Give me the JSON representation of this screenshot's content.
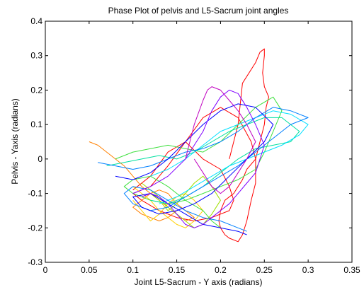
{
  "chart_data": {
    "type": "line",
    "title": "Phase Plot of pelvis and L5-Sacrum joint angles",
    "xlabel": "Joint L5-Sacrum - Y axis (radians)",
    "ylabel": "Pelvis - Yaxis (radians)",
    "xlim": [
      0,
      0.35
    ],
    "ylim": [
      -0.3,
      0.4
    ],
    "xticks": [
      "0",
      "0.05",
      "0.1",
      "0.15",
      "0.2",
      "0.25",
      "0.3",
      "0.35"
    ],
    "yticks": [
      "-0.3",
      "-0.2",
      "-0.1",
      "0",
      "0.1",
      "0.2",
      "0.3",
      "0.4"
    ],
    "grid": false,
    "series": [
      {
        "color": "#ff0000",
        "x": [
          0.21,
          0.22,
          0.225,
          0.24,
          0.245,
          0.25,
          0.25,
          0.248,
          0.25,
          0.255,
          0.252,
          0.25,
          0.245,
          0.24,
          0.23,
          0.225,
          0.22,
          0.215,
          0.205,
          0.2,
          0.198,
          0.2,
          0.205,
          0.21,
          0.22,
          0.225,
          0.23,
          0.235,
          0.24,
          0.24,
          0.235,
          0.22,
          0.2,
          0.18,
          0.16,
          0.14,
          0.12,
          0.1,
          0.11,
          0.13,
          0.15,
          0.17,
          0.19,
          0.21,
          0.215,
          0.21,
          0.2,
          0.18,
          0.16,
          0.14,
          0.12,
          0.1
        ],
        "y": [
          0.0,
          0.1,
          0.22,
          0.28,
          0.31,
          0.32,
          0.3,
          0.25,
          0.21,
          0.18,
          0.15,
          0.1,
          0.05,
          0.0,
          -0.03,
          -0.06,
          -0.08,
          -0.1,
          -0.12,
          -0.15,
          -0.18,
          -0.2,
          -0.22,
          -0.23,
          -0.24,
          -0.22,
          -0.18,
          -0.12,
          -0.07,
          0.0,
          0.05,
          0.12,
          0.15,
          0.12,
          0.05,
          -0.02,
          -0.08,
          -0.1,
          -0.12,
          -0.15,
          -0.17,
          -0.18,
          -0.17,
          -0.15,
          -0.12,
          -0.08,
          -0.03,
          0.0,
          0.05,
          0.02,
          -0.05,
          -0.09
        ]
      },
      {
        "color": "#ff8000",
        "x": [
          0.05,
          0.06,
          0.07,
          0.08,
          0.09,
          0.1,
          0.11,
          0.12,
          0.13,
          0.14,
          0.15,
          0.16,
          0.17,
          0.16,
          0.15,
          0.14,
          0.13,
          0.12,
          0.11,
          0.1,
          0.11,
          0.12,
          0.13,
          0.14,
          0.15
        ],
        "y": [
          0.05,
          0.04,
          0.02,
          0.0,
          -0.02,
          -0.05,
          -0.08,
          -0.1,
          -0.12,
          -0.14,
          -0.16,
          -0.18,
          -0.17,
          -0.15,
          -0.13,
          -0.1,
          -0.09,
          -0.1,
          -0.12,
          -0.14,
          -0.16,
          -0.17,
          -0.18,
          -0.17,
          -0.15
        ]
      },
      {
        "color": "#ffd000",
        "x": [
          0.1,
          0.11,
          0.12,
          0.13,
          0.14,
          0.15,
          0.16,
          0.17,
          0.18,
          0.17,
          0.16,
          0.15,
          0.14,
          0.13,
          0.12,
          0.11,
          0.1
        ],
        "y": [
          -0.08,
          -0.1,
          -0.12,
          -0.15,
          -0.17,
          -0.19,
          -0.2,
          -0.18,
          -0.15,
          -0.12,
          -0.1,
          -0.11,
          -0.13,
          -0.16,
          -0.18,
          -0.15,
          -0.12
        ]
      },
      {
        "color": "#a0e000",
        "x": [
          0.11,
          0.12,
          0.13,
          0.14,
          0.15,
          0.16,
          0.17,
          0.18,
          0.19,
          0.2,
          0.19,
          0.18,
          0.17,
          0.16,
          0.15,
          0.14,
          0.13,
          0.12
        ],
        "y": [
          -0.07,
          -0.09,
          -0.11,
          -0.14,
          -0.16,
          -0.18,
          -0.2,
          -0.19,
          -0.16,
          -0.12,
          -0.08,
          -0.05,
          -0.07,
          -0.1,
          -0.13,
          -0.15,
          -0.12,
          -0.1
        ]
      },
      {
        "color": "#40e040",
        "x": [
          0.08,
          0.1,
          0.12,
          0.14,
          0.16,
          0.18,
          0.2,
          0.22,
          0.24,
          0.26,
          0.27,
          0.26,
          0.25,
          0.24,
          0.22,
          0.2,
          0.18,
          0.16,
          0.14,
          0.12,
          0.1,
          0.09,
          0.1,
          0.12,
          0.14,
          0.16,
          0.18,
          0.19,
          0.2
        ],
        "y": [
          0.0,
          0.02,
          0.03,
          0.04,
          0.03,
          0.02,
          0.05,
          0.1,
          0.15,
          0.18,
          0.14,
          0.08,
          0.02,
          -0.03,
          -0.06,
          -0.08,
          -0.1,
          -0.12,
          -0.13,
          -0.12,
          -0.1,
          -0.08,
          -0.06,
          -0.05,
          -0.08,
          -0.12,
          -0.15,
          -0.18,
          -0.2
        ]
      },
      {
        "color": "#00e0a0",
        "x": [
          0.07,
          0.09,
          0.11,
          0.13,
          0.15,
          0.17,
          0.19,
          0.21,
          0.23,
          0.25,
          0.27,
          0.28,
          0.29,
          0.28,
          0.26,
          0.24,
          0.22,
          0.2,
          0.18,
          0.16,
          0.14,
          0.12
        ],
        "y": [
          -0.02,
          -0.01,
          0.0,
          0.01,
          0.0,
          0.02,
          0.05,
          0.08,
          0.1,
          0.12,
          0.12,
          0.1,
          0.08,
          0.05,
          0.04,
          0.03,
          0.0,
          -0.04,
          -0.08,
          -0.11,
          -0.13,
          -0.12
        ]
      },
      {
        "color": "#00e0ff",
        "x": [
          0.12,
          0.14,
          0.16,
          0.18,
          0.2,
          0.22,
          0.24,
          0.26,
          0.28,
          0.3,
          0.29,
          0.27,
          0.25,
          0.23,
          0.21,
          0.19,
          0.17,
          0.15,
          0.13
        ],
        "y": [
          -0.05,
          -0.03,
          0.0,
          0.04,
          0.08,
          0.1,
          0.12,
          0.14,
          0.13,
          0.1,
          0.07,
          0.04,
          0.02,
          0.0,
          -0.02,
          -0.05,
          -0.08,
          -0.11,
          -0.13
        ]
      },
      {
        "color": "#0080ff",
        "x": [
          0.06,
          0.08,
          0.1,
          0.12,
          0.14,
          0.16,
          0.18,
          0.2,
          0.22,
          0.24,
          0.26,
          0.28,
          0.3,
          0.28,
          0.26,
          0.24,
          0.22,
          0.2,
          0.18,
          0.16,
          0.14,
          0.12,
          0.1,
          0.09,
          0.1,
          0.12,
          0.14,
          0.16,
          0.18,
          0.2,
          0.22,
          0.23
        ],
        "y": [
          -0.01,
          -0.02,
          -0.03,
          -0.02,
          0.0,
          0.02,
          0.03,
          0.05,
          0.08,
          0.12,
          0.15,
          0.14,
          0.12,
          0.1,
          0.06,
          0.02,
          -0.02,
          -0.05,
          -0.08,
          -0.11,
          -0.14,
          -0.15,
          -0.13,
          -0.1,
          -0.08,
          -0.09,
          -0.12,
          -0.15,
          -0.17,
          -0.18,
          -0.2,
          -0.21
        ]
      },
      {
        "color": "#0000ff",
        "x": [
          0.08,
          0.1,
          0.12,
          0.14,
          0.16,
          0.18,
          0.2,
          0.22,
          0.24,
          0.26,
          0.25,
          0.23,
          0.21,
          0.19,
          0.17,
          0.15,
          0.13,
          0.11,
          0.1,
          0.12,
          0.14,
          0.16,
          0.18,
          0.2,
          0.22,
          0.23
        ],
        "y": [
          -0.05,
          -0.06,
          -0.04,
          0.0,
          0.05,
          0.1,
          0.14,
          0.16,
          0.15,
          0.1,
          0.05,
          0.0,
          -0.05,
          -0.1,
          -0.13,
          -0.15,
          -0.16,
          -0.14,
          -0.11,
          -0.1,
          -0.13,
          -0.16,
          -0.19,
          -0.2,
          -0.21,
          -0.22
        ]
      },
      {
        "color": "#8000ff",
        "x": [
          0.1,
          0.12,
          0.14,
          0.16,
          0.18,
          0.19,
          0.2,
          0.21,
          0.22,
          0.23,
          0.24,
          0.25,
          0.245,
          0.24,
          0.23,
          0.22,
          0.21,
          0.2,
          0.19,
          0.18,
          0.17,
          0.16,
          0.15,
          0.14,
          0.13,
          0.12,
          0.11
        ],
        "y": [
          -0.1,
          -0.08,
          -0.05,
          0.0,
          0.08,
          0.14,
          0.18,
          0.2,
          0.19,
          0.15,
          0.1,
          0.04,
          0.0,
          -0.04,
          -0.07,
          -0.1,
          -0.13,
          -0.15,
          -0.17,
          -0.19,
          -0.2,
          -0.19,
          -0.16,
          -0.13,
          -0.11,
          -0.1,
          -0.11
        ]
      },
      {
        "color": "#c000c0",
        "x": [
          0.16,
          0.17,
          0.18,
          0.185,
          0.19,
          0.2,
          0.21,
          0.22,
          0.23,
          0.24,
          0.23,
          0.22,
          0.21,
          0.2,
          0.19,
          0.18,
          0.17
        ],
        "y": [
          0.0,
          0.1,
          0.17,
          0.2,
          0.21,
          0.2,
          0.17,
          0.14,
          0.1,
          0.05,
          0.0,
          -0.04,
          -0.08,
          -0.1,
          -0.08,
          -0.04,
          0.0
        ]
      }
    ]
  }
}
